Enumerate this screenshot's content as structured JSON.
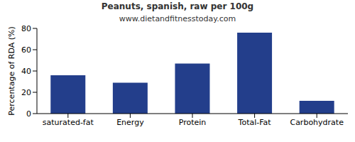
{
  "chart_data": {
    "type": "bar",
    "title": "Peanuts, spanish, raw per 100g",
    "subtitle": "www.dietandfitnesstoday.com",
    "y_label": "Percentage of RDA (%)",
    "categories": [
      "saturated-fat",
      "Energy",
      "Protein",
      "Total-Fat",
      "Carbohydrate"
    ],
    "values": [
      36,
      29,
      47,
      76,
      12
    ],
    "color": "#233e8b",
    "ylim": [
      0,
      80
    ],
    "yticks": [
      0,
      20,
      40,
      60,
      80
    ],
    "grid": false
  }
}
